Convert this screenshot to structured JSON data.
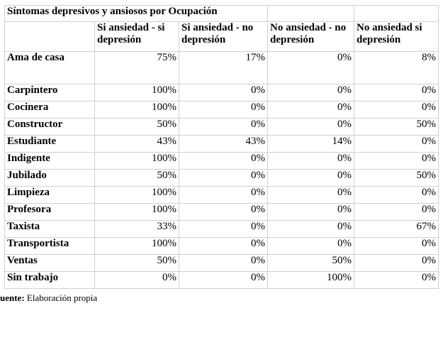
{
  "table": {
    "title": "Síntomas depresivos y ansiosos por Ocupación",
    "headers": [
      "Si ansiedad - si depresión",
      "Si ansiedad - no depresión",
      "No ansiedad - no depresión",
      "No ansiedad si depresión"
    ],
    "rows": [
      [
        "Ama de casa",
        "75%",
        "17%",
        "0%",
        "8%"
      ],
      [
        "Carpintero",
        "100%",
        "0%",
        "0%",
        "0%"
      ],
      [
        "Cocinera",
        "100%",
        "0%",
        "0%",
        "0%"
      ],
      [
        "Constructor",
        "50%",
        "0%",
        "0%",
        "50%"
      ],
      [
        "Estudiante",
        "43%",
        "43%",
        "14%",
        "0%"
      ],
      [
        "Indigente",
        "100%",
        "0%",
        "0%",
        "0%"
      ],
      [
        "Jubilado",
        "50%",
        "0%",
        "0%",
        "50%"
      ],
      [
        "Limpieza",
        "100%",
        "0%",
        "0%",
        "0%"
      ],
      [
        "Profesora",
        "100%",
        "0%",
        "0%",
        "0%"
      ],
      [
        "Taxista",
        "33%",
        "0%",
        "0%",
        "67%"
      ],
      [
        "Transportista",
        "100%",
        "0%",
        "0%",
        "0%"
      ],
      [
        "Ventas",
        "50%",
        "0%",
        "50%",
        "0%"
      ],
      [
        "Sin trabajo",
        "0%",
        "0%",
        "100%",
        "0%"
      ]
    ]
  },
  "source": {
    "label": "uente:",
    "text": "Elaboración propia"
  }
}
